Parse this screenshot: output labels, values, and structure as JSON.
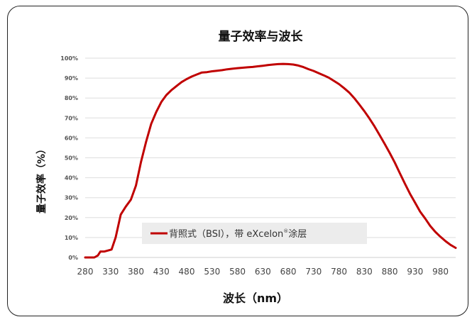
{
  "chart_data": {
    "type": "line",
    "title": "量子效率与波长",
    "xlabel": "波长（nm）",
    "ylabel": "量子效率（%）",
    "xlim": [
      280,
      1010
    ],
    "ylim": [
      0,
      100
    ],
    "x_ticks": [
      "280",
      "330",
      "380",
      "430",
      "480",
      "530",
      "580",
      "630",
      "680",
      "730",
      "780",
      "830",
      "880",
      "930",
      "980"
    ],
    "y_ticks": [
      "0%",
      "10%",
      "20%",
      "30%",
      "40%",
      "50%",
      "60%",
      "70%",
      "80%",
      "90%",
      "100%"
    ],
    "grid": true,
    "legend_position": "bottom-left",
    "legend": {
      "text": "背照式（BSI），带 eXcelon",
      "sup": "®",
      "suffix": "涂层"
    },
    "series": [
      {
        "name": "背照式（BSI），带 eXcelon®涂层",
        "color": "#c00000",
        "x": [
          280,
          290,
          298,
          305,
          310,
          318,
          325,
          332,
          340,
          350,
          360,
          370,
          380,
          390,
          400,
          410,
          420,
          430,
          440,
          450,
          460,
          470,
          480,
          490,
          500,
          510,
          520,
          530,
          540,
          550,
          560,
          570,
          580,
          590,
          600,
          610,
          620,
          630,
          640,
          650,
          660,
          670,
          680,
          690,
          700,
          710,
          720,
          730,
          740,
          750,
          760,
          770,
          780,
          790,
          800,
          810,
          820,
          830,
          840,
          850,
          860,
          870,
          880,
          890,
          900,
          910,
          920,
          930,
          940,
          950,
          960,
          970,
          980,
          990,
          1000,
          1010
        ],
        "values": [
          0,
          0,
          0,
          1,
          3,
          3,
          3.5,
          4,
          10,
          21.5,
          25.5,
          29,
          36,
          48,
          58,
          67,
          73,
          78,
          81.5,
          84,
          86,
          88,
          89.5,
          90.8,
          91.8,
          92.8,
          93,
          93.4,
          93.7,
          94,
          94.4,
          94.7,
          95,
          95.2,
          95.4,
          95.6,
          95.9,
          96.2,
          96.5,
          96.8,
          97,
          97.1,
          97,
          96.8,
          96.3,
          95.5,
          94.5,
          93.6,
          92.5,
          91.4,
          90.2,
          88.6,
          87,
          85,
          82.8,
          80,
          76.8,
          73.4,
          69.8,
          65.8,
          61.5,
          57,
          52.5,
          47.6,
          42.3,
          37,
          32,
          27.5,
          23,
          19.5,
          15.8,
          12.8,
          10.4,
          8.2,
          6.3,
          4.8
        ]
      }
    ]
  }
}
